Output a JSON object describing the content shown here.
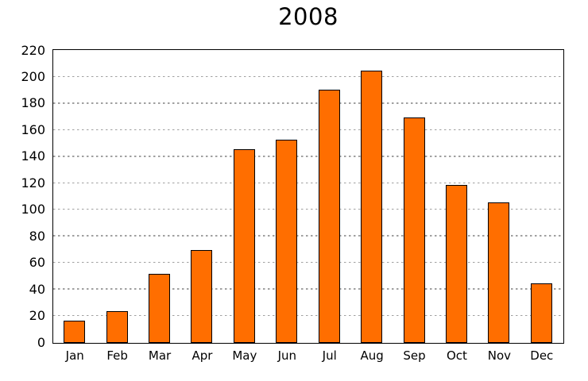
{
  "chart_data": {
    "type": "bar",
    "title": "2008",
    "categories": [
      "Jan",
      "Feb",
      "Mar",
      "Apr",
      "May",
      "Jun",
      "Jul",
      "Aug",
      "Sep",
      "Oct",
      "Nov",
      "Dec"
    ],
    "values": [
      17,
      24,
      52,
      70,
      146,
      153,
      191,
      205,
      170,
      119,
      106,
      45
    ],
    "xlabel": "",
    "ylabel": "",
    "ylim": [
      0,
      220
    ],
    "ytick_step": 20,
    "ytick_labels": [
      "0",
      "20",
      "40",
      "60",
      "80",
      "100",
      "120",
      "140",
      "160",
      "180",
      "200",
      "220"
    ],
    "grid": true,
    "legend": false,
    "colors": {
      "bar_fill": "#FF6E00",
      "bar_border": "#000000",
      "gridline": "#A0A0A0",
      "axis": "#000000",
      "background": "#FFFFFF",
      "text": "#000000"
    }
  }
}
